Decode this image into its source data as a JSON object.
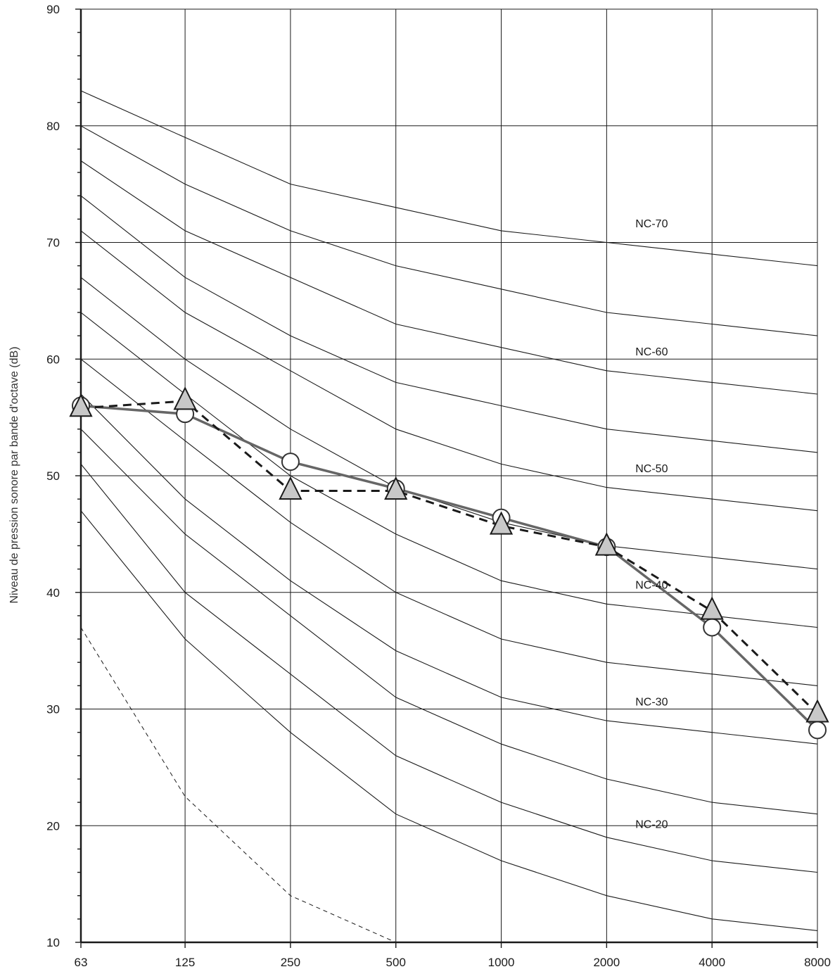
{
  "chart_data": {
    "type": "line",
    "title": "",
    "xlabel": "",
    "ylabel": "Niveau de pression sonore par bande d'octave (dB)",
    "x_scale": "log",
    "x": [
      63,
      125,
      250,
      500,
      1000,
      2000,
      4000,
      8000
    ],
    "x_tick_labels": [
      "63",
      "125",
      "250",
      "500",
      "1000",
      "2000",
      "4000",
      "8000"
    ],
    "ylim": [
      10,
      90
    ],
    "y_ticks": [
      10,
      20,
      30,
      40,
      50,
      60,
      70,
      80,
      90
    ],
    "y_tick_labels": [
      "10",
      "20",
      "30",
      "40",
      "50",
      "60",
      "70",
      "80",
      "90"
    ],
    "grid": true,
    "nc_curves": [
      {
        "label": "NC-70",
        "values": [
          83,
          79,
          75,
          73,
          71,
          70,
          69,
          68
        ]
      },
      {
        "label": "",
        "values": [
          80,
          75,
          71,
          68,
          66,
          64,
          63,
          62
        ]
      },
      {
        "label": "NC-60",
        "values": [
          77,
          71,
          67,
          63,
          61,
          59,
          58,
          57
        ]
      },
      {
        "label": "",
        "values": [
          74,
          67,
          62,
          58,
          56,
          54,
          53,
          52
        ]
      },
      {
        "label": "NC-50",
        "values": [
          71,
          64,
          59,
          54,
          51,
          49,
          48,
          47
        ]
      },
      {
        "label": "",
        "values": [
          67,
          60,
          54,
          49,
          46,
          44,
          43,
          42
        ]
      },
      {
        "label": "NC-40",
        "values": [
          64,
          57,
          50,
          45,
          41,
          39,
          38,
          37
        ]
      },
      {
        "label": "",
        "values": [
          60,
          53,
          46,
          40,
          36,
          34,
          33,
          32
        ]
      },
      {
        "label": "NC-30",
        "values": [
          57,
          48,
          41,
          35,
          31,
          29,
          28,
          27
        ]
      },
      {
        "label": "",
        "values": [
          54,
          45,
          38,
          31,
          27,
          24,
          22,
          21
        ]
      },
      {
        "label": "NC-20",
        "values": [
          51,
          40,
          33,
          26,
          22,
          19,
          17,
          16
        ]
      },
      {
        "label": "",
        "values": [
          47,
          36,
          28,
          21,
          17,
          14,
          12,
          11
        ]
      }
    ],
    "threshold_curve": {
      "x": [
        63,
        125,
        250,
        500
      ],
      "values": [
        37,
        22.5,
        14,
        10
      ]
    },
    "series": [
      {
        "marker": "circle",
        "line_style": "solid",
        "color": "#666666",
        "values": [
          56,
          55.3,
          51.2,
          48.9,
          46.4,
          43.9,
          37,
          28.2
        ]
      },
      {
        "marker": "triangle",
        "line_style": "dashed",
        "color": "#1a1a1a",
        "values": [
          55.8,
          56.4,
          48.7,
          48.7,
          45.7,
          43.9,
          38.4,
          29.6
        ]
      }
    ]
  }
}
